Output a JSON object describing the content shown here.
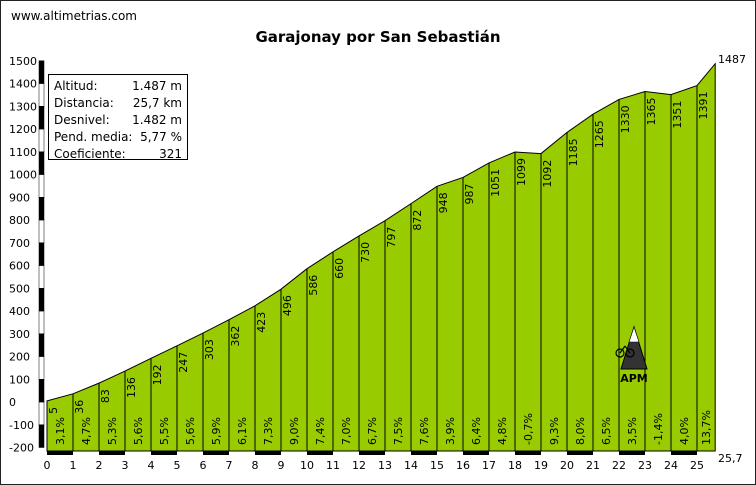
{
  "header": {
    "site": "www.altimetrias.com",
    "end_distance_label": "25,7",
    "end_altitude_label": "1487"
  },
  "summary": [
    {
      "label": "Altitud:",
      "value": "1.487 m"
    },
    {
      "label": "Distancia:",
      "value": "25,7 km"
    },
    {
      "label": "Desnivel:",
      "value": "1.482 m"
    },
    {
      "label": "Pend. media:",
      "value": "5,77 %"
    },
    {
      "label": "Coeficiente:",
      "value": "321"
    }
  ],
  "logo": {
    "text": "APM"
  },
  "colors": {
    "fill": "#99cc00",
    "stroke": "#000000",
    "grade_bar": "#000000"
  },
  "chart_data": {
    "type": "area",
    "title": "Garajonay por San Sebastián",
    "xlabel": "",
    "ylabel": "",
    "xlim": [
      0,
      25.7
    ],
    "ylim": [
      -200,
      1500
    ],
    "grid": false,
    "x_ticks": [
      "0",
      "1",
      "2",
      "3",
      "4",
      "5",
      "6",
      "7",
      "8",
      "9",
      "10",
      "11",
      "12",
      "13",
      "14",
      "15",
      "16",
      "17",
      "18",
      "19",
      "20",
      "21",
      "22",
      "23",
      "24",
      "25"
    ],
    "y_ticks": [
      "-200",
      "-100",
      "0",
      "100",
      "200",
      "300",
      "400",
      "500",
      "600",
      "700",
      "800",
      "900",
      "1000",
      "1100",
      "1200",
      "1300",
      "1400",
      "1500"
    ],
    "x": [
      0,
      1,
      2,
      3,
      4,
      5,
      6,
      7,
      8,
      9,
      10,
      11,
      12,
      13,
      14,
      15,
      16,
      17,
      18,
      19,
      20,
      21,
      22,
      23,
      24,
      25,
      25.7
    ],
    "altitude": [
      5,
      36,
      83,
      136,
      192,
      247,
      303,
      362,
      423,
      496,
      586,
      660,
      730,
      797,
      872,
      948,
      987,
      1051,
      1099,
      1092,
      1185,
      1265,
      1330,
      1365,
      1351,
      1391,
      1487
    ],
    "altitude_labels": [
      "5",
      "36",
      "83",
      "136",
      "192",
      "247",
      "303",
      "362",
      "423",
      "496",
      "586",
      "660",
      "730",
      "797",
      "872",
      "948",
      "987",
      "1051",
      "1099",
      "1092",
      "1185",
      "1265",
      "1330",
      "1365",
      "1351",
      "1391",
      "1487"
    ],
    "gradient_labels": [
      "3,1%",
      "4,7%",
      "5,3%",
      "5,6%",
      "5,5%",
      "5,6%",
      "5,9%",
      "6,1%",
      "7,3%",
      "9,0%",
      "7,4%",
      "7,0%",
      "6,7%",
      "7,5%",
      "7,6%",
      "3,9%",
      "6,4%",
      "4,8%",
      "-0,7%",
      "9,3%",
      "8,0%",
      "6,5%",
      "3,5%",
      "-1,4%",
      "4,0%",
      "13,7%"
    ]
  }
}
